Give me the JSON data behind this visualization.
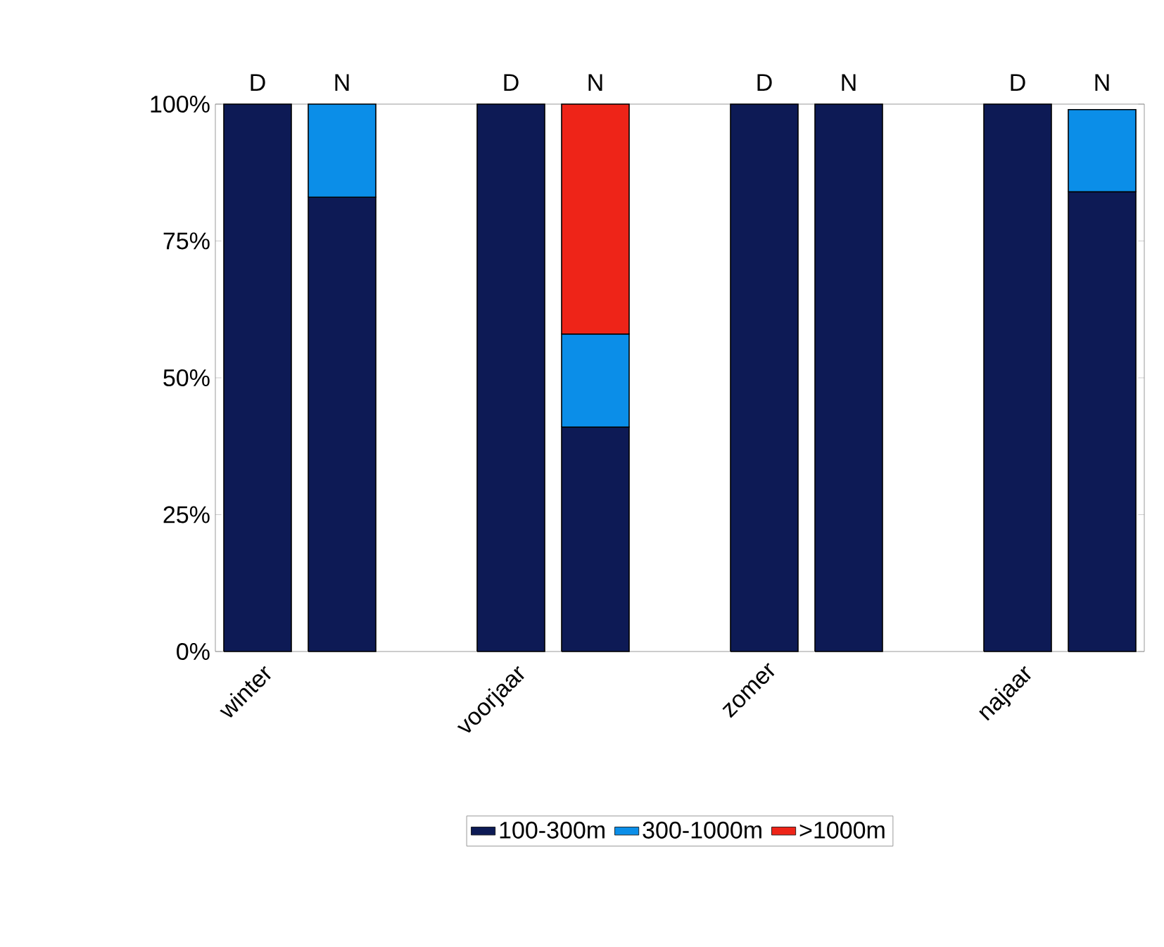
{
  "chart_data": {
    "type": "bar",
    "stacked": true,
    "categories": [
      "winter",
      null,
      null,
      "voorjaar",
      null,
      null,
      "zomer",
      null,
      null,
      "najaar",
      null
    ],
    "series": [
      {
        "name": "100-300m",
        "color": "#0d1a55",
        "values": [
          100,
          83,
          null,
          100,
          41,
          null,
          100,
          100,
          null,
          100,
          84
        ]
      },
      {
        "name": "300-1000m",
        "color": "#0b8ee8",
        "values": [
          null,
          17,
          null,
          null,
          17,
          null,
          null,
          null,
          null,
          null,
          15
        ]
      },
      {
        "name": ">1000m",
        "color": "#ee2418",
        "values": [
          null,
          null,
          null,
          null,
          42,
          null,
          null,
          null,
          null,
          null,
          null
        ]
      }
    ],
    "annotations": [
      {
        "text": "D",
        "y": 100
      },
      {
        "text": "N",
        "y": 100
      },
      {
        "text": "D",
        "y": 100
      },
      {
        "text": "N",
        "y": 100
      },
      {
        "text": "D",
        "y": 100
      },
      {
        "text": "N",
        "y": 100
      },
      {
        "text": "D",
        "y": 100
      },
      {
        "text": "N",
        "y": 100
      }
    ],
    "ylim": [
      0,
      100
    ],
    "yticks": [
      {
        "value": 0,
        "label": "0%"
      },
      {
        "value": 25,
        "label": "25%"
      },
      {
        "value": 50,
        "label": "50%"
      },
      {
        "value": 75,
        "label": "75%"
      },
      {
        "value": 100,
        "label": "100%"
      }
    ],
    "grid": false,
    "legend": "bottom"
  }
}
